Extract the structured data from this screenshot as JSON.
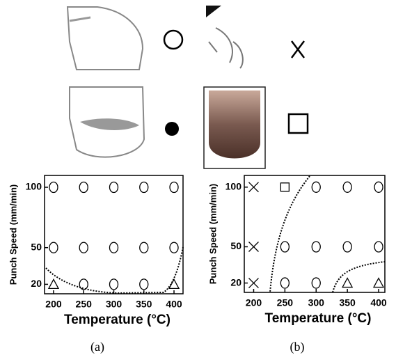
{
  "chart_data": [
    {
      "type": "scatter",
      "caption": "(a)",
      "x_label": "Temperature (°C)",
      "y_label": "Punch Speed (mm/min)",
      "xlim": [
        185,
        415
      ],
      "xticks": [
        200,
        250,
        300,
        350,
        400
      ],
      "yticks": [
        20,
        50,
        100
      ],
      "series": [
        {
          "marker": "circle",
          "x": [
            200,
            250,
            300,
            350,
            400,
            200,
            250,
            300,
            350,
            400,
            250,
            300,
            350
          ],
          "values": [
            100,
            100,
            100,
            100,
            100,
            50,
            50,
            50,
            50,
            50,
            20,
            20,
            20
          ]
        },
        {
          "marker": "triangle",
          "x": [
            200,
            400
          ],
          "values": [
            20,
            20
          ]
        }
      ]
    },
    {
      "type": "scatter",
      "caption": "(b)",
      "x_label": "Temperature (°C)",
      "y_label": "Punch Speed (mm/min)",
      "xlim": [
        185,
        410
      ],
      "xticks": [
        200,
        250,
        300,
        350,
        400
      ],
      "yticks": [
        20,
        50,
        100
      ],
      "series": [
        {
          "marker": "cross",
          "x": [
            200,
            200,
            200
          ],
          "values": [
            100,
            50,
            20
          ]
        },
        {
          "marker": "square",
          "x": [
            250
          ],
          "values": [
            100
          ]
        },
        {
          "marker": "circle",
          "x": [
            300,
            350,
            400,
            250,
            300,
            350,
            400,
            250,
            300
          ],
          "values": [
            100,
            100,
            100,
            50,
            50,
            50,
            50,
            20,
            20
          ]
        },
        {
          "marker": "triangle",
          "x": [
            350,
            400
          ],
          "values": [
            20,
            20
          ]
        }
      ]
    }
  ]
}
